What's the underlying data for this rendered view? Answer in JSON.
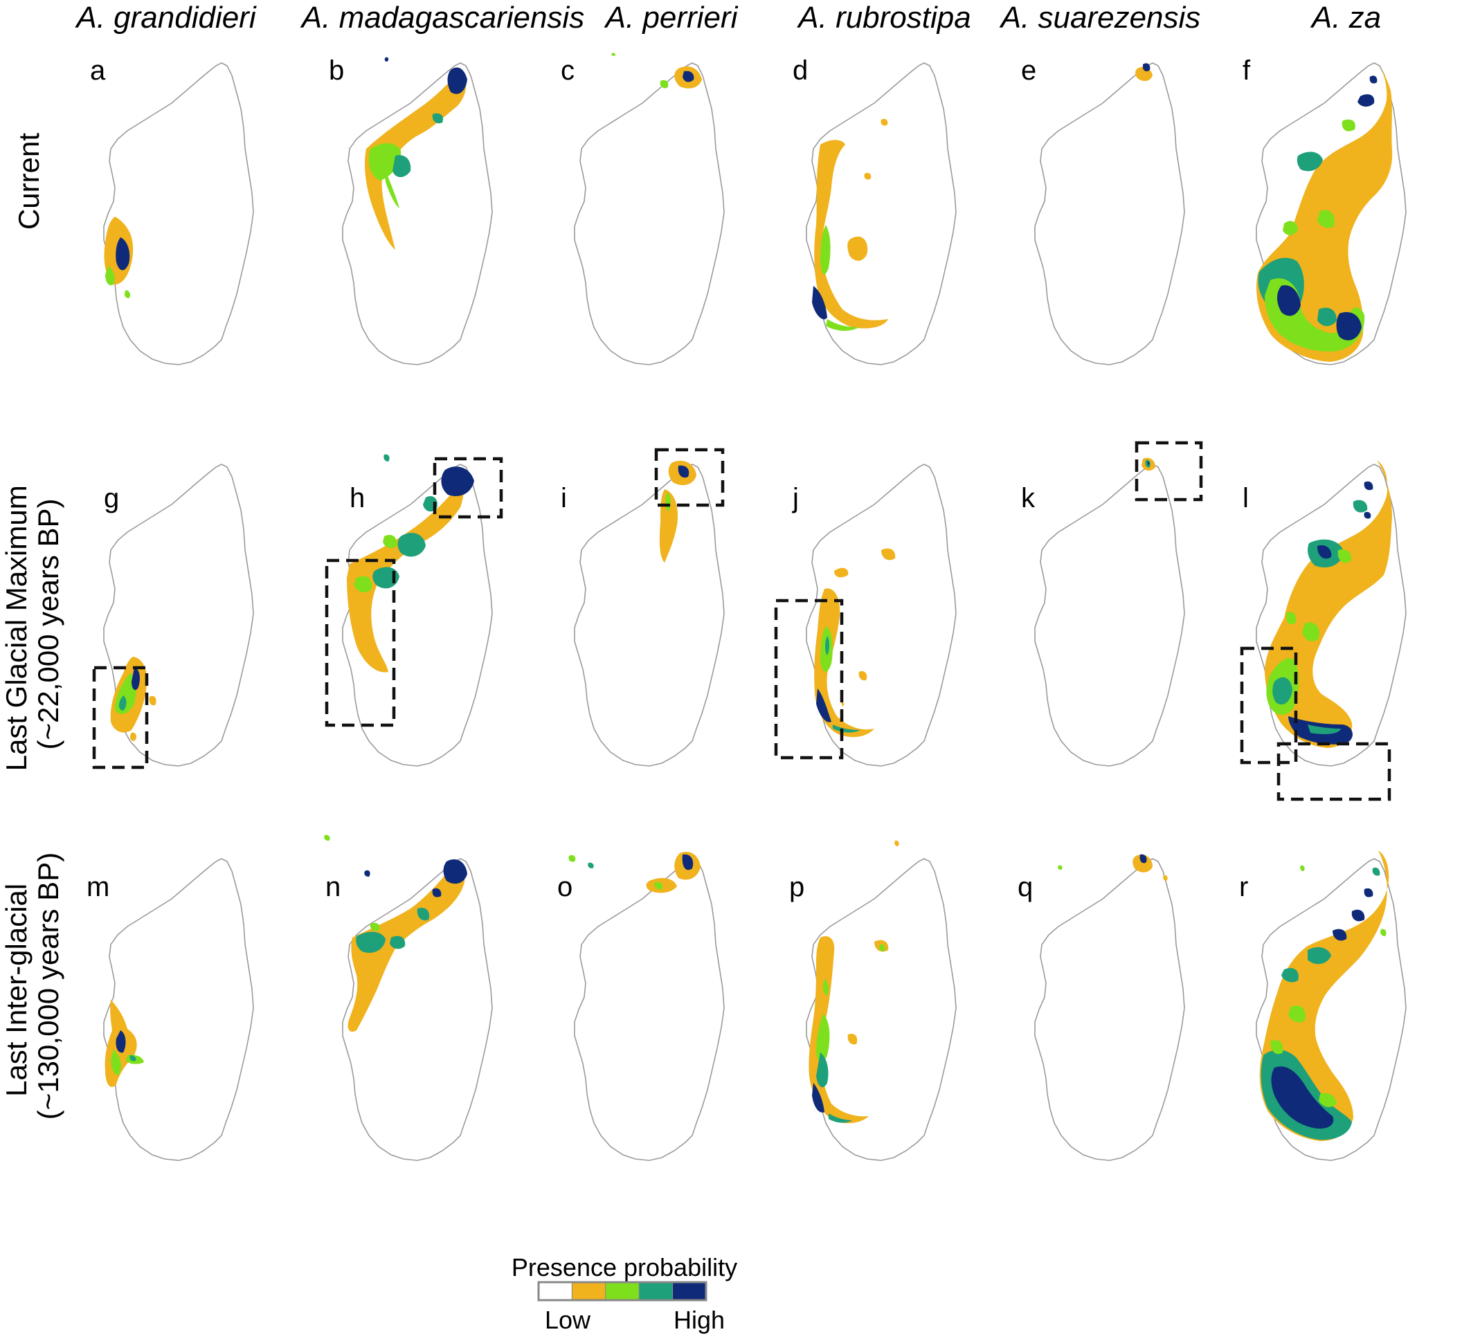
{
  "species": [
    "A. grandidieri",
    "A. madagascariensis",
    "A. perrieri",
    "A. rubrostipa",
    "A. suarezensis",
    "A. za"
  ],
  "rows": [
    {
      "lines": [
        "Current"
      ]
    },
    {
      "lines": [
        "Last Glacial Maximum",
        "(~22,000 years BP)"
      ]
    },
    {
      "lines": [
        "Last Inter-glacial",
        "(~130,000 years BP)"
      ]
    }
  ],
  "panel_letters": [
    "a",
    "b",
    "c",
    "d",
    "e",
    "f",
    "g",
    "h",
    "i",
    "j",
    "k",
    "l",
    "m",
    "n",
    "o",
    "p",
    "q",
    "r"
  ],
  "legend": {
    "title": "Presence probability",
    "low": "Low",
    "high": "High",
    "colors": [
      "#ffffff",
      "#f0b21d",
      "#7ee01c",
      "#1ea07a",
      "#0f2a78"
    ]
  },
  "map_colors": {
    "outline": "#9a9a9a",
    "box": "#111111"
  }
}
